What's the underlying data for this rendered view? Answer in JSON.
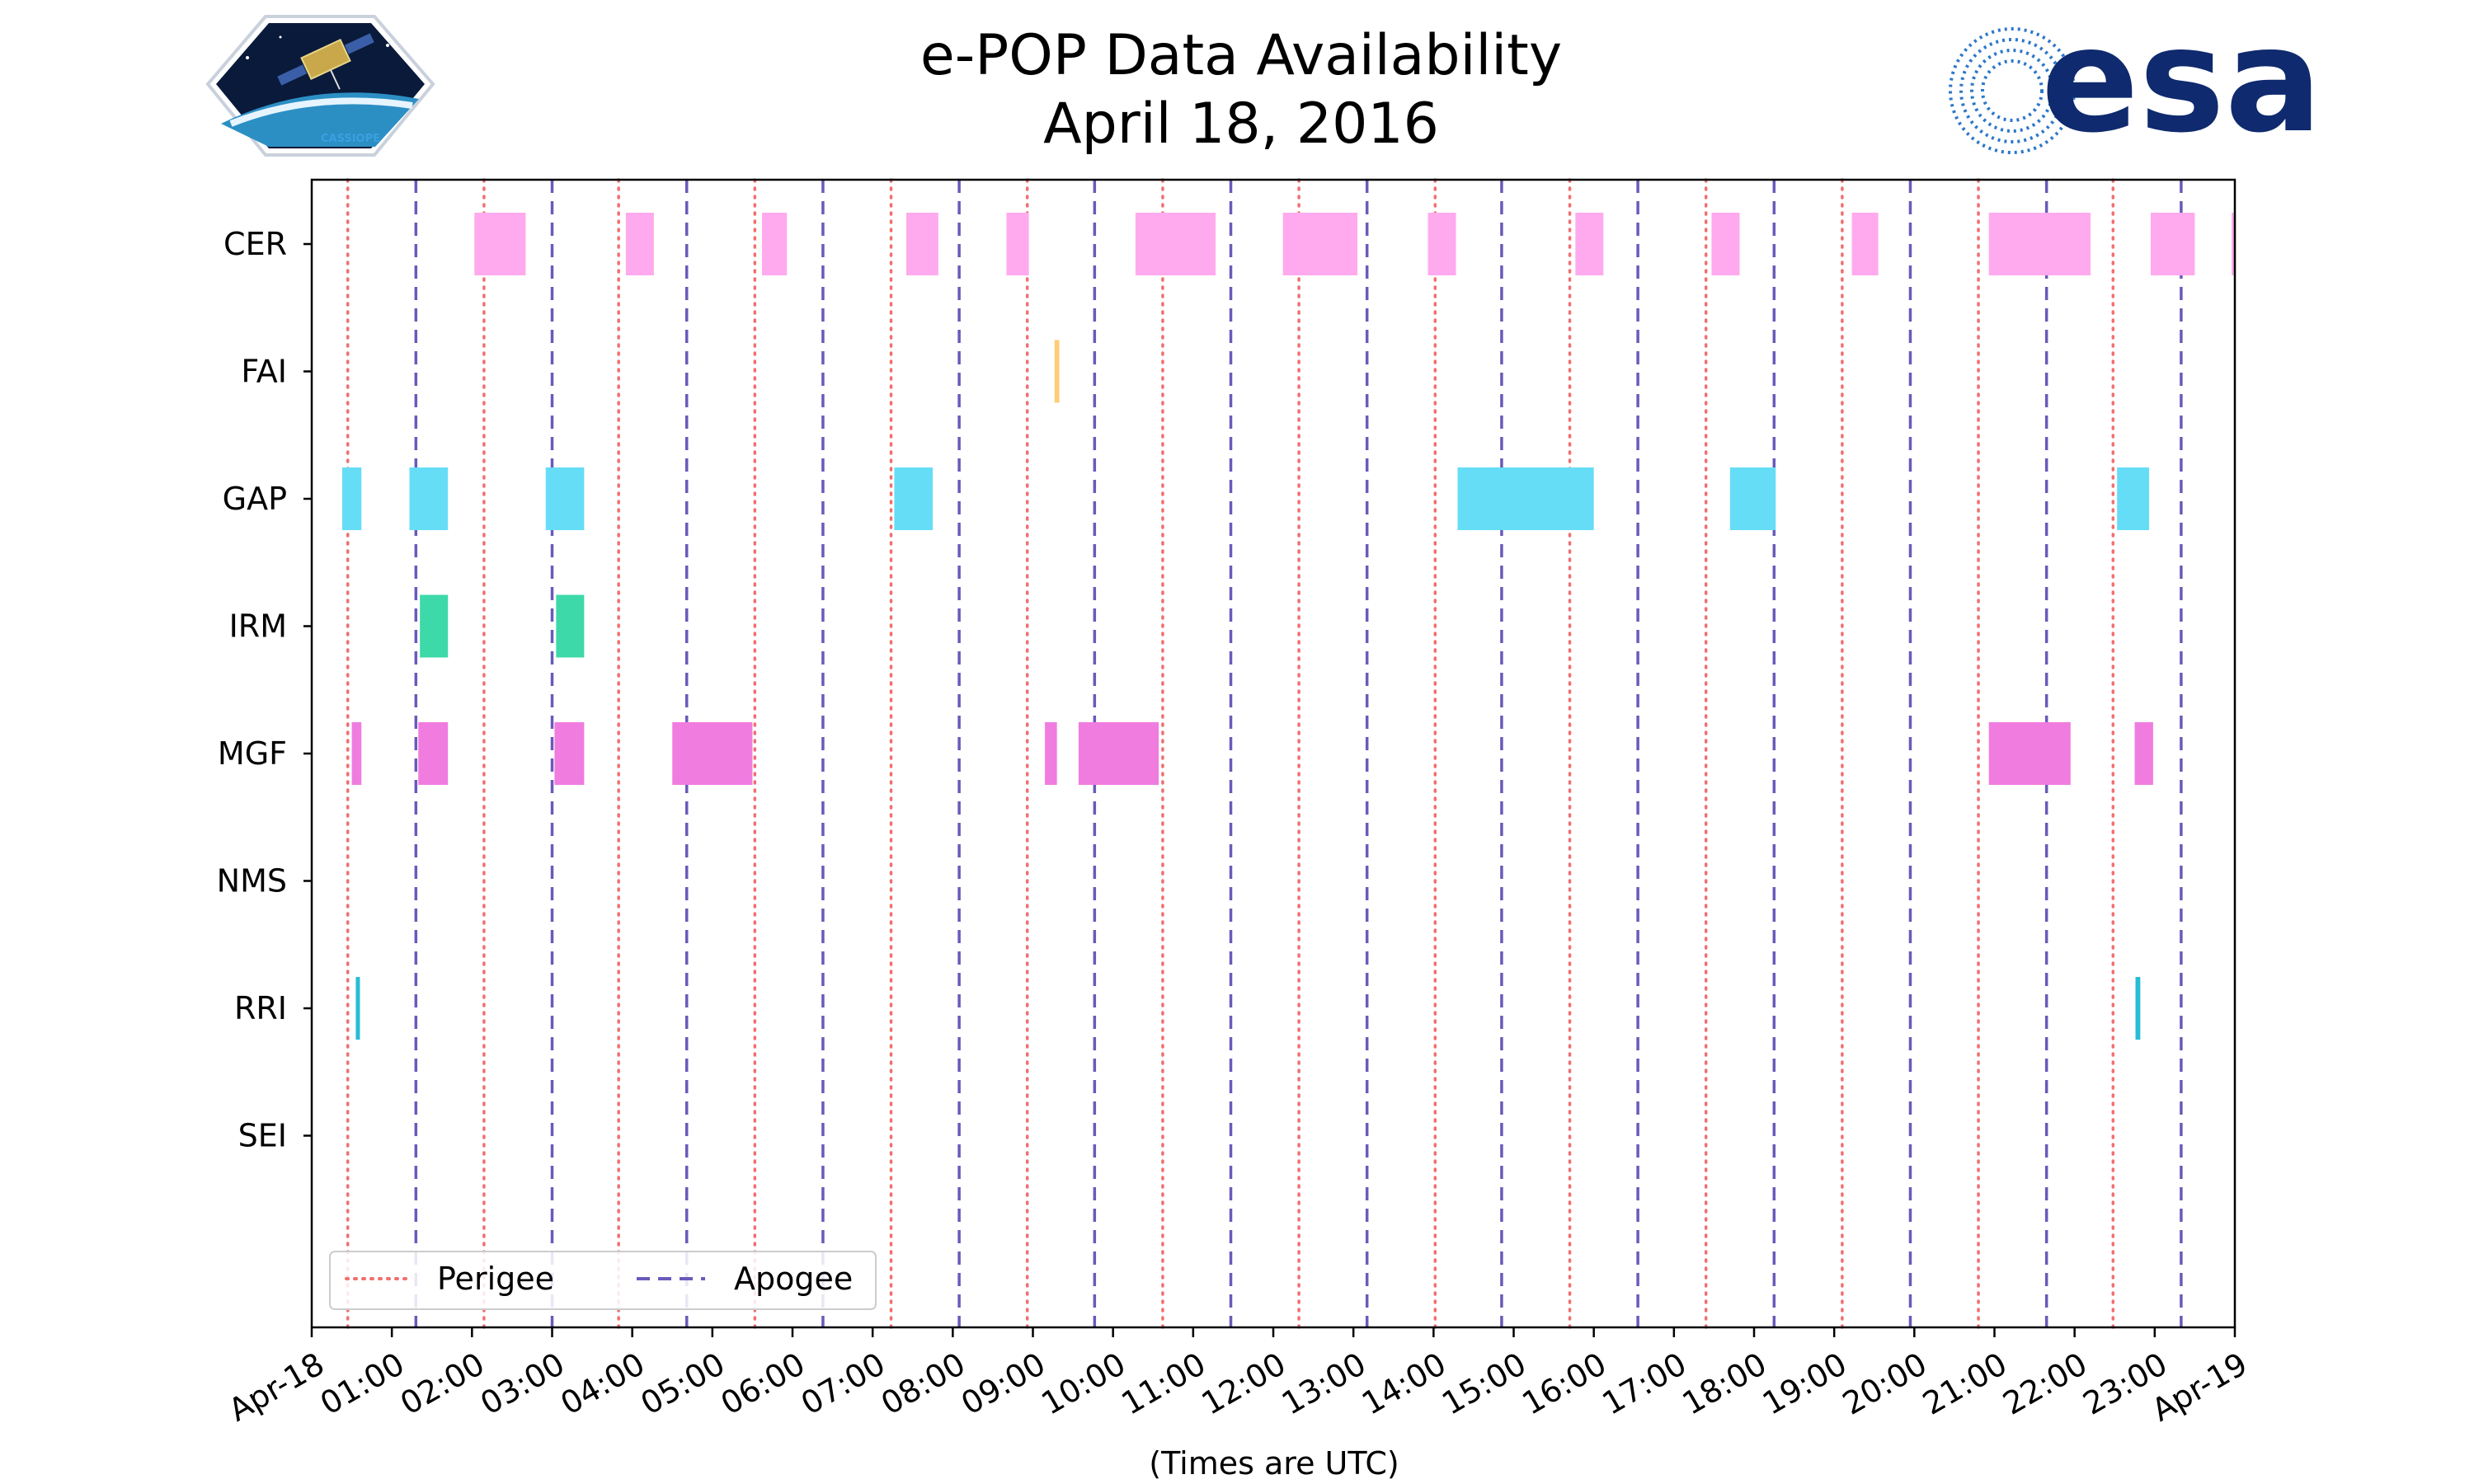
{
  "chart_data": {
    "type": "timeline",
    "title": "e-POP Data Availability",
    "subtitle": "April 18, 2016",
    "xlabel": "(Times are UTC)",
    "x_range_hours": [
      0,
      24
    ],
    "x_tick_labels": [
      "Apr-18",
      "01:00",
      "02:00",
      "03:00",
      "04:00",
      "05:00",
      "06:00",
      "07:00",
      "08:00",
      "09:00",
      "10:00",
      "11:00",
      "12:00",
      "13:00",
      "14:00",
      "15:00",
      "16:00",
      "17:00",
      "18:00",
      "19:00",
      "20:00",
      "21:00",
      "22:00",
      "23:00",
      "Apr-19"
    ],
    "instruments": [
      "CER",
      "FAI",
      "GAP",
      "IRM",
      "MGF",
      "NMS",
      "RRI",
      "SEI"
    ],
    "colors": {
      "CER": "#ffaaee",
      "FAI": "#ffcc77",
      "GAP": "#66ddf7",
      "IRM": "#3dd9a9",
      "MGF": "#f07ce0",
      "RRI": "#29bcd6",
      "perigee": "#f07070",
      "apogee": "#6a5aba"
    },
    "intervals": {
      "CER": [
        [
          2.03,
          2.67
        ],
        [
          3.92,
          4.27
        ],
        [
          5.62,
          5.93
        ],
        [
          7.42,
          7.82
        ],
        [
          8.67,
          8.95
        ],
        [
          10.28,
          11.28
        ],
        [
          12.12,
          13.05
        ],
        [
          13.93,
          14.28
        ],
        [
          15.77,
          16.12
        ],
        [
          17.47,
          17.82
        ],
        [
          19.22,
          19.55
        ],
        [
          20.93,
          22.2
        ],
        [
          22.95,
          23.5
        ],
        [
          23.96,
          24.0
        ]
      ],
      "FAI": [
        [
          9.27,
          9.33
        ]
      ],
      "GAP": [
        [
          0.38,
          0.62
        ],
        [
          1.22,
          1.7
        ],
        [
          2.92,
          3.4
        ],
        [
          7.27,
          7.75
        ],
        [
          14.3,
          16.0
        ],
        [
          17.7,
          18.27
        ],
        [
          22.53,
          22.93
        ]
      ],
      "IRM": [
        [
          1.35,
          1.7
        ],
        [
          3.05,
          3.4
        ]
      ],
      "MGF": [
        [
          0.5,
          0.62
        ],
        [
          1.33,
          1.7
        ],
        [
          3.03,
          3.4
        ],
        [
          4.5,
          5.5
        ],
        [
          9.15,
          9.3
        ],
        [
          9.57,
          10.57
        ],
        [
          20.93,
          21.95
        ],
        [
          22.75,
          22.98
        ]
      ],
      "NMS": [],
      "RRI": [
        [
          0.55,
          0.6
        ],
        [
          22.76,
          22.82
        ]
      ],
      "SEI": []
    },
    "perigee_hours": [
      0.45,
      2.15,
      3.83,
      5.53,
      7.23,
      8.93,
      10.62,
      12.32,
      14.02,
      15.7,
      17.4,
      19.1,
      20.8,
      22.48
    ],
    "apogee_hours": [
      1.3,
      3.0,
      4.68,
      6.38,
      8.08,
      9.77,
      11.47,
      13.17,
      14.85,
      16.55,
      18.25,
      19.95,
      21.65,
      23.33
    ],
    "legend": {
      "perigee": "Perigee",
      "apogee": "Apogee",
      "position": "lower-left"
    }
  },
  "logos": {
    "left": "CASSIOPE",
    "right": "esa"
  },
  "icons": {
    "left_logo": "cassiope-satellite-logo",
    "right_logo": "esa-logo"
  }
}
